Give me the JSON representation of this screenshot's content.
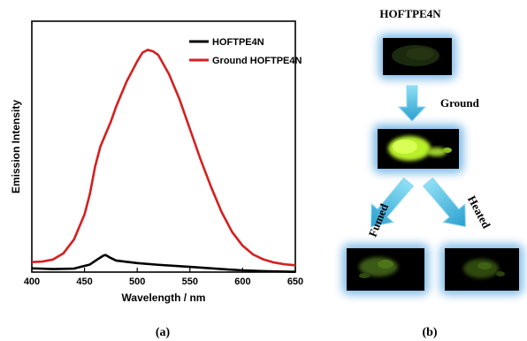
{
  "panel_a": {
    "label": "(a)",
    "chart_data": {
      "type": "line",
      "xlabel": "Wavelength / nm",
      "ylabel": "Emission Intensity",
      "xlim": [
        400,
        650
      ],
      "ylim": [
        0,
        100
      ],
      "x_ticks": [
        400,
        450,
        500,
        550,
        600,
        650
      ],
      "y_ticks_shown": false,
      "legend_position": "top-right",
      "series": [
        {
          "name": "HOFTPE4N",
          "color": "#000000",
          "x": [
            400,
            420,
            440,
            455,
            462,
            468,
            470,
            475,
            480,
            500,
            520,
            550,
            580,
            600,
            620,
            650
          ],
          "y": [
            1.5,
            1.2,
            1.4,
            3.0,
            5.0,
            6.6,
            6.8,
            5.6,
            4.6,
            3.6,
            2.9,
            2.1,
            1.2,
            0.7,
            0.4,
            0.1
          ]
        },
        {
          "name": "Ground HOFTPE4N",
          "color": "#d42020",
          "x": [
            400,
            410,
            420,
            430,
            440,
            450,
            455,
            460,
            465,
            470,
            475,
            480,
            490,
            500,
            505,
            510,
            515,
            520,
            530,
            540,
            550,
            560,
            570,
            580,
            590,
            600,
            610,
            620,
            630,
            640,
            650
          ],
          "y": [
            4,
            4.2,
            5,
            7.5,
            13,
            23,
            31,
            42,
            50,
            55,
            60,
            66,
            76,
            84,
            87.5,
            88.6,
            88,
            86.5,
            79,
            69,
            57,
            45,
            34,
            24,
            16,
            10.5,
            7,
            5,
            3.8,
            3.1,
            2.7
          ]
        }
      ]
    }
  },
  "panel_b": {
    "label": "(b)",
    "title": "HOFTPE4N",
    "arrow_ground": "Ground",
    "arrow_fumed": "Fumed",
    "arrow_heated": "Heated",
    "colors": {
      "arrow": "#3fb3d9",
      "glow": "#5aa7e0",
      "sample_bg": "#000000",
      "bright_emission": "#b8f02a",
      "dim_emission": "#3a5a12"
    }
  }
}
